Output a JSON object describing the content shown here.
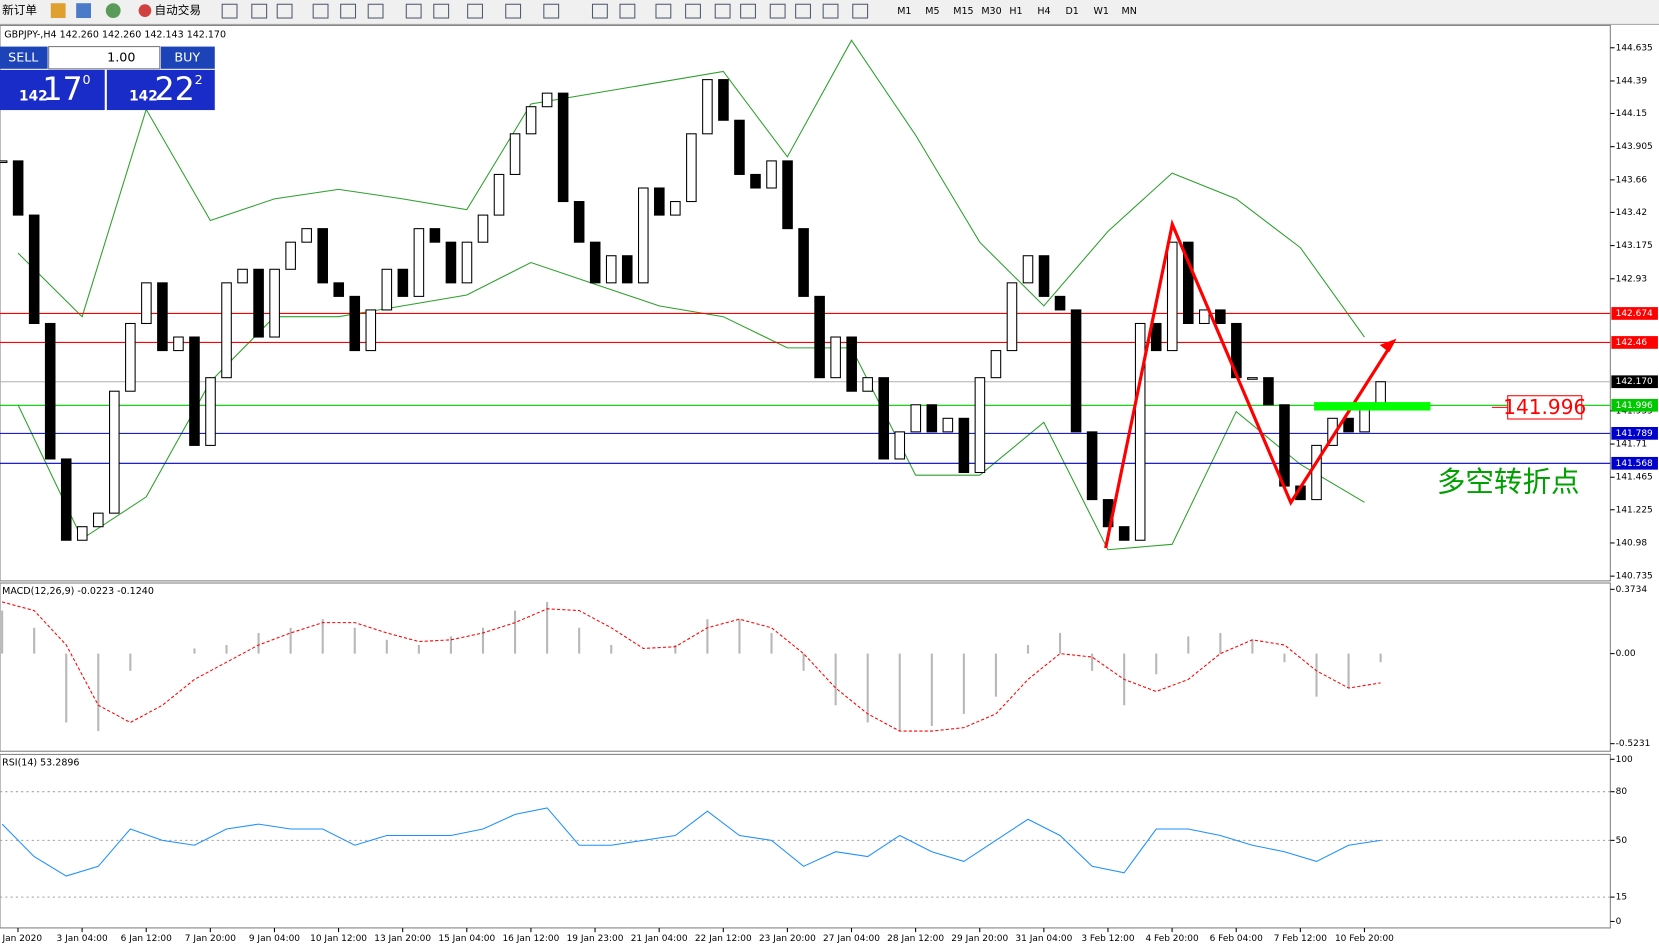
{
  "toolbar": {
    "new_order": "新订单",
    "auto_trading": "自动交易",
    "timeframes": [
      "M1",
      "M5",
      "M15",
      "M30",
      "H1",
      "H4",
      "D1",
      "W1",
      "MN"
    ]
  },
  "trade_panel": {
    "sell": "SELL",
    "buy": "BUY",
    "lots": "1.00",
    "bid_big": "142",
    "bid_main": "17",
    "bid_small": "0",
    "ask_big": "142",
    "ask_main": "22",
    "ask_small": "2"
  },
  "chart": {
    "type": "candlestick",
    "header": "GBPJPY-,H4  142.260 142.260 142.143 142.170",
    "ylim": [
      140.7,
      144.8
    ],
    "yticks": [
      144.635,
      144.39,
      144.15,
      143.905,
      143.66,
      143.42,
      143.175,
      142.93,
      141.955,
      141.71,
      141.465,
      141.225,
      140.98,
      140.735
    ],
    "closes": [
      143.8,
      143.4,
      142.6,
      141.6,
      141.0,
      141.1,
      141.2,
      142.1,
      142.6,
      142.9,
      142.4,
      142.5,
      141.7,
      142.2,
      142.9,
      143.0,
      142.5,
      143.0,
      143.2,
      143.3,
      142.9,
      142.8,
      142.4,
      142.7,
      143.0,
      142.8,
      143.3,
      143.2,
      142.9,
      143.2,
      143.4,
      143.7,
      144.0,
      144.2,
      144.3,
      143.5,
      143.2,
      142.9,
      143.1,
      142.9,
      143.6,
      143.4,
      143.5,
      144.0,
      144.4,
      144.1,
      143.7,
      143.6,
      143.8,
      143.3,
      142.8,
      142.2,
      142.5,
      142.1,
      142.2,
      141.6,
      141.8,
      142.0,
      141.8,
      141.9,
      141.5,
      142.2,
      142.4,
      142.9,
      143.1,
      142.8,
      142.7,
      141.8,
      141.3,
      141.1,
      141.0,
      142.6,
      142.4,
      143.2,
      142.6,
      142.7,
      142.6,
      142.2,
      142.2,
      142.0,
      141.4,
      141.3,
      141.7,
      141.9,
      141.8,
      142.0,
      142.17
    ],
    "bands": {
      "color": "#2ca02c",
      "upper": [
        143.12,
        142.65,
        144.18,
        143.36,
        143.52,
        143.59,
        143.52,
        143.44,
        144.22,
        144.3,
        144.38,
        144.46,
        143.83,
        144.69,
        143.99,
        143.2,
        142.73,
        143.28,
        143.71,
        143.52,
        143.16,
        142.5
      ],
      "lower": [
        142.0,
        141.01,
        141.32,
        142.17,
        142.65,
        142.65,
        142.73,
        142.81,
        143.05,
        142.89,
        142.73,
        142.65,
        142.42,
        142.42,
        141.48,
        141.48,
        141.87,
        140.93,
        140.97,
        141.95,
        141.56,
        141.28
      ]
    },
    "levels": [
      {
        "value": 142.674,
        "color": "#ff0000"
      },
      {
        "value": 142.46,
        "color": "#ff0000"
      },
      {
        "value": 141.996,
        "color": "#00c800"
      },
      {
        "value": 141.789,
        "color": "#0000cc"
      },
      {
        "value": 141.568,
        "color": "#0000cc"
      }
    ],
    "current_price": {
      "value": 142.17,
      "label": "142.170"
    },
    "annotation": "多空转折点",
    "x_labels": [
      "2 Jan 2020",
      "3 Jan 04:00",
      "6 Jan 12:00",
      "7 Jan 20:00",
      "9 Jan 04:00",
      "10 Jan 12:00",
      "13 Jan 20:00",
      "15 Jan 04:00",
      "16 Jan 12:00",
      "19 Jan 23:00",
      "21 Jan 04:00",
      "22 Jan 12:00",
      "23 Jan 20:00",
      "27 Jan 04:00",
      "28 Jan 12:00",
      "29 Jan 20:00",
      "31 Jan 04:00",
      "3 Feb 12:00",
      "4 Feb 20:00",
      "6 Feb 04:00",
      "7 Feb 12:00",
      "10 Feb 20:00"
    ]
  },
  "macd": {
    "label": "MACD(12,26,9) -0.0223 -0.1240",
    "ylim": [
      -0.567,
      0.41
    ],
    "yticks": [
      0.3734,
      {
        "value": 0,
        "label": "0.00"
      },
      -0.5231
    ],
    "histogram": [
      0.25,
      0.15,
      -0.4,
      -0.45,
      -0.1,
      0,
      0.03,
      0.05,
      0.12,
      0.15,
      0.2,
      0.15,
      0.08,
      0.05,
      0.1,
      0.15,
      0.25,
      0.3,
      0.15,
      0.05,
      0,
      0.05,
      0.2,
      0.2,
      0.12,
      -0.1,
      -0.3,
      -0.4,
      -0.45,
      -0.42,
      -0.35,
      -0.25,
      0.05,
      0.12,
      -0.1,
      -0.3,
      -0.12,
      0.1,
      0.12,
      0.08,
      -0.05,
      -0.25,
      -0.2,
      -0.05
    ],
    "signal": [
      0.3,
      0.25,
      0.05,
      -0.3,
      -0.4,
      -0.3,
      -0.15,
      -0.05,
      0.05,
      0.12,
      0.18,
      0.18,
      0.12,
      0.07,
      0.08,
      0.12,
      0.18,
      0.26,
      0.25,
      0.15,
      0.03,
      0.04,
      0.15,
      0.2,
      0.15,
      0,
      -0.2,
      -0.35,
      -0.45,
      -0.45,
      -0.43,
      -0.35,
      -0.15,
      0,
      -0.02,
      -0.15,
      -0.22,
      -0.15,
      0,
      0.08,
      0.05,
      -0.1,
      -0.2,
      -0.17
    ]
  },
  "rsi": {
    "label": "RSI(14) 53.2896",
    "ylim": [
      -4,
      103
    ],
    "yticks": [
      100,
      80,
      50,
      15,
      0
    ],
    "values": [
      60,
      40,
      28,
      34,
      57,
      50,
      47,
      57,
      60,
      57,
      57,
      47,
      53,
      53,
      53,
      57,
      66,
      70,
      47,
      47,
      50,
      53,
      68,
      53,
      50,
      34,
      43,
      40,
      53,
      43,
      37,
      50,
      63,
      53,
      34,
      30,
      57,
      57,
      53,
      47,
      43,
      37,
      47,
      50
    ]
  }
}
